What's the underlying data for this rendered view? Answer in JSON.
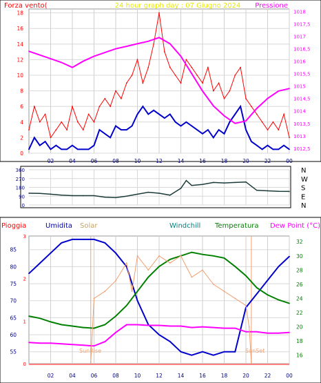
{
  "top_panel": {
    "title": "24 hour graph day : 07 Giugno 2024",
    "left_label": "Forza vento(",
    "right_label": "Pressione",
    "colors": {
      "title": "#e8e800",
      "left": "#ff0000",
      "right": "#ff00ff",
      "grid": "#c0c0c0"
    }
  },
  "wind_panel": {
    "dir_labels": [
      "N",
      "W",
      "S",
      "E",
      "N"
    ]
  },
  "bottom_panel": {
    "header": [
      {
        "key": "pioggia",
        "text": "Pioggia",
        "color": "#ff0000"
      },
      {
        "key": "umidita",
        "text": "Umidita",
        "color": "#0000aa"
      },
      {
        "key": "solar",
        "text": "Solar",
        "color": "#c8a060"
      },
      {
        "key": "windchill",
        "text": "Windchill",
        "color": "#008080"
      },
      {
        "key": "temperatura",
        "text": "Temperatura",
        "color": "#008000"
      },
      {
        "key": "dewpoint",
        "text": "Dew Point (°C)",
        "color": "#ff00ff"
      }
    ],
    "sunrise_label": "SunRise",
    "sunset_label": "SunSet"
  },
  "chart_data": [
    {
      "type": "line",
      "title": "24 hour graph day : 07 Giugno 2024",
      "x_ticks": [
        "02",
        "04",
        "06",
        "08",
        "10",
        "12",
        "14",
        "16",
        "18",
        "20",
        "22",
        "00"
      ],
      "left_axis": {
        "label": "Forza vento(",
        "ticks": [
          "0",
          "2",
          "4",
          "6",
          "8",
          "10",
          "12",
          "14",
          "16",
          "18"
        ],
        "ylim": [
          0,
          18.5
        ]
      },
      "right_axis": {
        "label": "Pressione",
        "ticks": [
          "1012,5",
          "1013",
          "1013,5",
          "1014",
          "1014,5",
          "1015",
          "1015,5",
          "1016",
          "1016,5",
          "1017",
          "1017,5",
          "1018"
        ],
        "ylim": [
          1012.3,
          1018.1
        ]
      },
      "series": [
        {
          "key": "gust",
          "color": "#ff0000",
          "axis": "left",
          "x": [
            0,
            0.5,
            1,
            1.5,
            2,
            2.5,
            3,
            3.5,
            4,
            4.5,
            5,
            5.5,
            6,
            6.5,
            7,
            7.5,
            8,
            8.5,
            9,
            9.5,
            10,
            10.5,
            11,
            11.5,
            12,
            12.5,
            13,
            13.5,
            14,
            14.5,
            15,
            15.5,
            16,
            16.5,
            17,
            17.5,
            18,
            18.5,
            19,
            19.5,
            20,
            20.5,
            21,
            21.5,
            22,
            22.5,
            23,
            23.5,
            24
          ],
          "values": [
            3,
            6,
            4,
            5,
            2,
            3,
            4,
            3,
            6,
            4,
            3,
            5,
            4,
            6,
            7,
            6,
            8,
            7,
            9,
            10,
            12,
            9,
            11,
            14,
            18,
            13,
            11,
            10,
            9,
            12,
            11,
            10,
            9,
            11,
            8,
            9,
            7,
            8,
            10,
            11,
            7,
            6,
            5,
            4,
            3,
            4,
            3,
            5,
            2
          ]
        },
        {
          "key": "wind_avg",
          "color": "#0000cc",
          "axis": "left",
          "x": [
            0,
            0.5,
            1,
            1.5,
            2,
            2.5,
            3,
            3.5,
            4,
            4.5,
            5,
            5.5,
            6,
            6.5,
            7,
            7.5,
            8,
            8.5,
            9,
            9.5,
            10,
            10.5,
            11,
            11.5,
            12,
            12.5,
            13,
            13.5,
            14,
            14.5,
            15,
            15.5,
            16,
            16.5,
            17,
            17.5,
            18,
            18.5,
            19,
            19.5,
            20,
            20.5,
            21,
            21.5,
            22,
            22.5,
            23,
            23.5,
            24
          ],
          "values": [
            0.5,
            2,
            1,
            1.5,
            0.5,
            1,
            0.5,
            0.5,
            1,
            0.5,
            0.5,
            0.5,
            1,
            3,
            2.5,
            2,
            3.5,
            3,
            3,
            3.5,
            5,
            6,
            5,
            5.5,
            5,
            4.5,
            5,
            4,
            3.5,
            4,
            3.5,
            3,
            2.5,
            3,
            2,
            3,
            2.5,
            4,
            5,
            6,
            3,
            1.5,
            1,
            0.5,
            1,
            0.5,
            0.5,
            1,
            0.5
          ]
        },
        {
          "key": "pressure",
          "color": "#ff00ff",
          "axis": "right",
          "x": [
            0,
            1,
            2,
            3,
            4,
            5,
            6,
            7,
            8,
            9,
            10,
            11,
            12,
            13,
            14,
            15,
            16,
            17,
            18,
            19,
            20,
            21,
            22,
            23,
            24
          ],
          "values": [
            1016.4,
            1016.25,
            1016.1,
            1015.95,
            1015.75,
            1016.0,
            1016.2,
            1016.35,
            1016.5,
            1016.6,
            1016.7,
            1016.8,
            1016.95,
            1016.7,
            1016.2,
            1015.5,
            1014.8,
            1014.2,
            1013.8,
            1013.5,
            1013.6,
            1014.1,
            1014.5,
            1014.8,
            1014.9
          ]
        }
      ]
    },
    {
      "type": "line",
      "x_ticks": [
        "02",
        "04",
        "06",
        "08",
        "10",
        "12",
        "14",
        "16",
        "18",
        "20",
        "22",
        "00"
      ],
      "left_axis": {
        "ticks": [
          "0",
          "90",
          "180",
          "270",
          "360"
        ],
        "ylim": [
          0,
          360
        ]
      },
      "right_axis": {
        "ticks": [
          "N",
          "W",
          "S",
          "E",
          "N"
        ]
      },
      "series": [
        {
          "key": "wind_dir",
          "color": "#1a3a3a",
          "x": [
            0,
            1,
            2,
            3,
            4,
            5,
            6,
            7,
            8,
            9,
            10,
            11,
            12,
            13,
            14,
            14.5,
            15,
            16,
            17,
            18,
            19,
            20,
            21,
            22,
            23,
            24
          ],
          "values": [
            120,
            118,
            110,
            100,
            95,
            95,
            95,
            80,
            75,
            90,
            110,
            130,
            120,
            100,
            170,
            250,
            200,
            210,
            230,
            225,
            230,
            235,
            150,
            145,
            140,
            138
          ]
        }
      ]
    },
    {
      "type": "line",
      "x_ticks": [
        "02",
        "04",
        "06",
        "08",
        "10",
        "12",
        "14",
        "16",
        "18",
        "20",
        "22",
        "00"
      ],
      "left_axis": {
        "label": "Umidita",
        "ticks": [
          "55",
          "60",
          "65",
          "70",
          "75",
          "80",
          "85"
        ],
        "ylim": [
          51.5,
          89
        ]
      },
      "right_axis": {
        "label": "Dew Point (°C)",
        "ticks": [
          "16",
          "18",
          "20",
          "22",
          "24",
          "26",
          "28",
          "30",
          "32"
        ],
        "ylim": [
          14.8,
          32.8
        ]
      },
      "rain_axis": {
        "ticks": [
          "0",
          "1",
          "2",
          "3"
        ],
        "ylim": [
          0,
          3
        ]
      },
      "series": [
        {
          "key": "humidity",
          "color": "#0000cc",
          "axis": "left",
          "x": [
            0,
            1,
            2,
            3,
            4,
            5,
            6,
            7,
            8,
            9,
            10,
            11,
            12,
            13,
            14,
            15,
            16,
            17,
            18,
            19,
            20,
            21,
            22,
            23,
            24
          ],
          "values": [
            78,
            81,
            84,
            87,
            88,
            88,
            88,
            87,
            84,
            80,
            70,
            63,
            60,
            58,
            55,
            54,
            55,
            54,
            55,
            55,
            68,
            72,
            76,
            80,
            83
          ]
        },
        {
          "key": "temperatura",
          "color": "#008000",
          "axis": "right",
          "x": [
            0,
            1,
            2,
            3,
            4,
            5,
            6,
            7,
            8,
            9,
            10,
            11,
            12,
            13,
            14,
            15,
            16,
            17,
            18,
            19,
            20,
            21,
            22,
            23,
            24
          ],
          "values": [
            21.5,
            21.2,
            20.7,
            20.3,
            20.1,
            19.9,
            19.8,
            20.3,
            21.5,
            23.0,
            25.0,
            27.0,
            28.5,
            29.5,
            30.0,
            30.5,
            30.2,
            30.0,
            29.7,
            28.5,
            27.2,
            25.5,
            24.5,
            23.8,
            23.3
          ]
        },
        {
          "key": "dewpoint",
          "color": "#ff00ff",
          "axis": "right",
          "x": [
            0,
            1,
            2,
            3,
            4,
            5,
            6,
            7,
            8,
            9,
            10,
            11,
            12,
            13,
            14,
            15,
            16,
            17,
            18,
            19,
            20,
            21,
            22,
            23,
            24
          ],
          "values": [
            17.8,
            17.7,
            17.7,
            17.6,
            17.5,
            17.4,
            17.3,
            17.9,
            19.2,
            20.3,
            20.3,
            20.2,
            20.2,
            20.1,
            20.1,
            19.9,
            20.0,
            19.9,
            19.8,
            19.8,
            19.3,
            19.3,
            19.1,
            19.1,
            19.2
          ]
        },
        {
          "key": "solar",
          "color": "#f0a070",
          "axis": "right",
          "x": [
            5.7,
            6,
            7,
            8,
            9,
            9.5,
            10,
            11,
            12,
            13,
            14,
            15,
            16,
            17,
            18,
            19,
            20,
            20.3,
            20.5
          ],
          "values": [
            15,
            24,
            25,
            26.5,
            29,
            25,
            30,
            28,
            30,
            29,
            30,
            27,
            28,
            26,
            25,
            24,
            23,
            20,
            15
          ]
        }
      ]
    }
  ]
}
